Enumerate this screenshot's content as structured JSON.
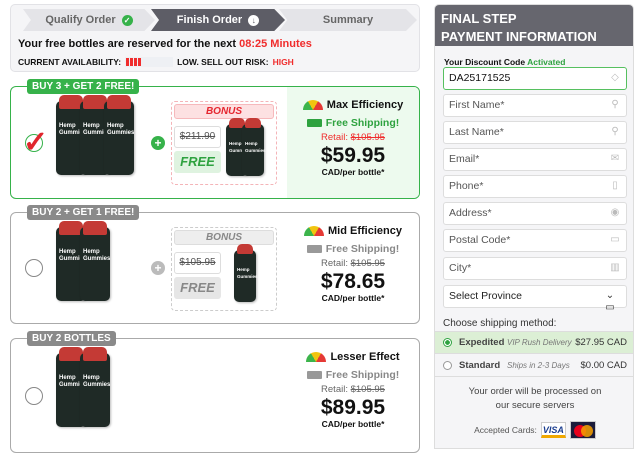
{
  "steps": [
    {
      "label": "Qualify Order",
      "state": "done"
    },
    {
      "label": "Finish Order",
      "state": "current"
    },
    {
      "label": "Summary",
      "state": "pending"
    }
  ],
  "reserve": {
    "text": "Your free bottles are reserved for the next",
    "timer": "08:25 Minutes"
  },
  "availability": {
    "label": "CURRENT AVAILABILITY:",
    "level_bars": 4,
    "risk_label": "LOW. SELL OUT RISK:",
    "risk": "HIGH"
  },
  "offers": [
    {
      "badge": "BUY 3 + GET 2 FREE!",
      "selected": true,
      "bonus": "BONUS",
      "bonus_old": "$211.90",
      "bonus_free": "FREE",
      "efficiency": "Max Efficiency",
      "shipping": "Free Shipping!",
      "retail_label": "Retail:",
      "retail": "$105.95",
      "price": "$59.95",
      "per": "CAD/per bottle*"
    },
    {
      "badge": "BUY 2 + GET 1 FREE!",
      "selected": false,
      "bonus": "BONUS",
      "bonus_old": "$105.95",
      "bonus_free": "FREE",
      "efficiency": "Mid Efficiency",
      "shipping": "Free Shipping!",
      "retail_label": "Retail:",
      "retail": "$105.95",
      "price": "$78.65",
      "per": "CAD/per bottle*"
    },
    {
      "badge": "BUY 2 BOTTLES",
      "selected": false,
      "efficiency": "Lesser Effect",
      "shipping": "Free Shipping!",
      "retail_label": "Retail:",
      "retail": "$105.95",
      "price": "$89.95",
      "per": "CAD/per bottle*"
    }
  ],
  "panel": {
    "title1": "FINAL STEP",
    "title2": "PAYMENT INFORMATION",
    "discount_label": "Your Discount Code",
    "discount_status": "Activated",
    "discount_code": "DA25171525",
    "fields": [
      {
        "ph": "First Name*",
        "icon": "user-icon"
      },
      {
        "ph": "Last Name*",
        "icon": "user-icon"
      },
      {
        "ph": "Email*",
        "icon": "mail-icon"
      },
      {
        "ph": "Phone*",
        "icon": "phone-icon"
      },
      {
        "ph": "Address*",
        "icon": "location-icon"
      },
      {
        "ph": "Postal Code*",
        "icon": "zip-icon"
      },
      {
        "ph": "City*",
        "icon": "building-icon"
      }
    ],
    "province": "Select Province",
    "shipping_label": "Choose shipping method:",
    "shipping": [
      {
        "name": "Expedited",
        "note": "VIP Rush Delivery",
        "price": "$27.95 CAD",
        "selected": true
      },
      {
        "name": "Standard",
        "note": "Ships in 2-3 Days",
        "price": "$0.00 CAD",
        "selected": false
      }
    ],
    "secure1": "Your order will be processed on",
    "secure2": "our secure servers",
    "cards_label": "Accepted Cards:",
    "visa": "VISA"
  }
}
